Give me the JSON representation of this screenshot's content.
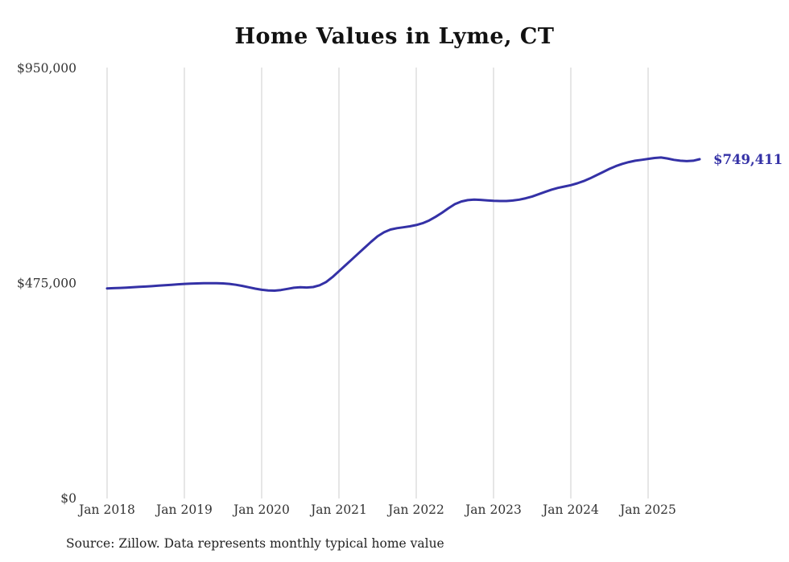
{
  "chart_data": {
    "type": "line",
    "title": "Home Values in Lyme, CT",
    "source_note": "Source: Zillow. Data represents monthly typical home value",
    "line_color": "#3431a6",
    "grid_color": "#cccccc",
    "tick_label_color": "#333333",
    "grid": "vertical-only",
    "legend_position": "none",
    "end_label": "$749,411",
    "end_value": 749411,
    "ylim": [
      0,
      950000
    ],
    "y_ticks": [
      {
        "value": 0,
        "label": "$0"
      },
      {
        "value": 475000,
        "label": "$475,000"
      },
      {
        "value": 950000,
        "label": "$950,000"
      }
    ],
    "x_ticks": [
      "Jan 2018",
      "Jan 2019",
      "Jan 2020",
      "Jan 2021",
      "Jan 2022",
      "Jan 2023",
      "Jan 2024",
      "Jan 2025"
    ],
    "x": [
      "2018-01",
      "2018-02",
      "2018-03",
      "2018-04",
      "2018-05",
      "2018-06",
      "2018-07",
      "2018-08",
      "2018-09",
      "2018-10",
      "2018-11",
      "2018-12",
      "2019-01",
      "2019-02",
      "2019-03",
      "2019-04",
      "2019-05",
      "2019-06",
      "2019-07",
      "2019-08",
      "2019-09",
      "2019-10",
      "2019-11",
      "2019-12",
      "2020-01",
      "2020-02",
      "2020-03",
      "2020-04",
      "2020-05",
      "2020-06",
      "2020-07",
      "2020-08",
      "2020-09",
      "2020-10",
      "2020-11",
      "2020-12",
      "2021-01",
      "2021-02",
      "2021-03",
      "2021-04",
      "2021-05",
      "2021-06",
      "2021-07",
      "2021-08",
      "2021-09",
      "2021-10",
      "2021-11",
      "2021-12",
      "2022-01",
      "2022-02",
      "2022-03",
      "2022-04",
      "2022-05",
      "2022-06",
      "2022-07",
      "2022-08",
      "2022-09",
      "2022-10",
      "2022-11",
      "2022-12",
      "2023-01",
      "2023-02",
      "2023-03",
      "2023-04",
      "2023-05",
      "2023-06",
      "2023-07",
      "2023-08",
      "2023-09",
      "2023-10",
      "2023-11",
      "2023-12",
      "2024-01",
      "2024-02",
      "2024-03",
      "2024-04",
      "2024-05",
      "2024-06",
      "2024-07",
      "2024-08",
      "2024-09",
      "2024-10",
      "2024-11",
      "2024-12",
      "2025-01",
      "2025-02",
      "2025-03",
      "2025-04",
      "2025-05",
      "2025-06",
      "2025-07",
      "2025-08",
      "2025-09"
    ],
    "values": [
      464000,
      464500,
      465000,
      465800,
      466500,
      467300,
      468000,
      469000,
      470000,
      471000,
      472000,
      473000,
      474000,
      474500,
      475000,
      475300,
      475500,
      475300,
      475000,
      474000,
      472000,
      469500,
      466500,
      463500,
      461000,
      459500,
      459000,
      460500,
      463000,
      465500,
      466500,
      466000,
      467000,
      471000,
      478000,
      489000,
      502000,
      515000,
      528000,
      541000,
      554000,
      567000,
      579000,
      588000,
      594000,
      597000,
      599000,
      601000,
      604000,
      608000,
      614000,
      622000,
      631000,
      641000,
      650000,
      656000,
      659000,
      660000,
      659500,
      658500,
      657500,
      657000,
      657000,
      658000,
      660000,
      663000,
      667000,
      672000,
      677000,
      682000,
      686000,
      689000,
      692000,
      696000,
      701000,
      707000,
      714000,
      721000,
      728000,
      734000,
      739000,
      743000,
      746000,
      748000,
      750000,
      752000,
      753000,
      751000,
      748000,
      746000,
      745000,
      746000,
      749411
    ]
  }
}
